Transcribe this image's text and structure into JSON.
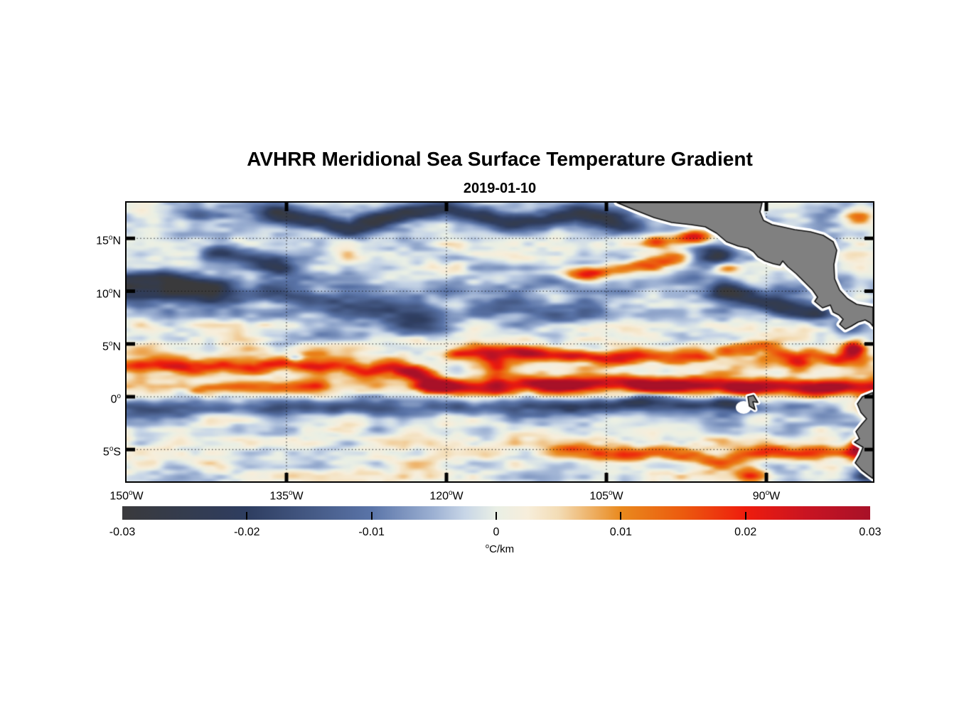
{
  "title": "AVHRR Meridional Sea Surface Temperature Gradient",
  "date": "2019-01-10",
  "axes": {
    "sup_char": "o",
    "x_ticks": [
      {
        "lon": -150,
        "t": "150",
        "d": "W"
      },
      {
        "lon": -135,
        "t": "135",
        "d": "W"
      },
      {
        "lon": -120,
        "t": "120",
        "d": "W"
      },
      {
        "lon": -105,
        "t": "105",
        "d": "W"
      },
      {
        "lon": -90,
        "t": "90",
        "d": "W"
      }
    ],
    "y_ticks": [
      {
        "lat": 15,
        "t": "15",
        "d": "N"
      },
      {
        "lat": 10,
        "t": "10",
        "d": "N"
      },
      {
        "lat": 5,
        "t": "5",
        "d": "N"
      },
      {
        "lat": 0,
        "t": "0",
        "d": ""
      },
      {
        "lat": -5,
        "t": "5",
        "d": "S"
      }
    ],
    "lon_range": [
      -150,
      -80
    ],
    "lat_range": [
      -8.0,
      18.4
    ],
    "grid": "dotted"
  },
  "colorbar": {
    "min": -0.03,
    "max": 0.03,
    "tick_values": [
      -0.03,
      -0.02,
      -0.01,
      0,
      0.01,
      0.02,
      0.03
    ],
    "tick_labels": [
      "-0.03",
      "-0.02",
      "-0.01",
      "0",
      "0.01",
      "0.02",
      "0.03"
    ],
    "unit_sup": "o",
    "unit_text": "C/km",
    "stops": [
      [
        -0.03,
        "#3a3a3c"
      ],
      [
        -0.02,
        "#2e3d60"
      ],
      [
        -0.01,
        "#5a74a8"
      ],
      [
        -0.005,
        "#9db1d3"
      ],
      [
        -0.0025,
        "#c8d6e7"
      ],
      [
        0.0,
        "#e9efe5"
      ],
      [
        0.0025,
        "#f7eedb"
      ],
      [
        0.005,
        "#f3dcb5"
      ],
      [
        0.01,
        "#e9891d"
      ],
      [
        0.015,
        "#ec5a0e"
      ],
      [
        0.02,
        "#ee1c0d"
      ],
      [
        0.025,
        "#c81422"
      ],
      [
        0.03,
        "#a81128"
      ]
    ]
  },
  "chart_data": {
    "type": "heatmap",
    "quantity": "meridional SST gradient",
    "units": "degC/km",
    "lon_range": [
      -150,
      -80
    ],
    "lat_range": [
      -8.0,
      18.4
    ],
    "value_range": [
      -0.03,
      0.03
    ],
    "lat_mean_profile": [
      [
        18.4,
        -0.002
      ],
      [
        17.0,
        -0.004
      ],
      [
        15.5,
        -0.002
      ],
      [
        13.5,
        -0.0005
      ],
      [
        12.0,
        -0.002
      ],
      [
        10.5,
        -0.005
      ],
      [
        9.0,
        -0.004
      ],
      [
        7.0,
        -0.002
      ],
      [
        5.5,
        0.001
      ],
      [
        4.0,
        0.004
      ],
      [
        2.5,
        0.003
      ],
      [
        1.0,
        0.004
      ],
      [
        0.0,
        0.001
      ],
      [
        -1.0,
        -0.003
      ],
      [
        -2.5,
        -0.002
      ],
      [
        -4.0,
        0.001
      ],
      [
        -5.5,
        0.002
      ],
      [
        -7.0,
        0.0005
      ],
      [
        -8.0,
        -0.001
      ]
    ],
    "noise": {
      "seed": 7,
      "octaves": [
        {
          "sx": 3.2,
          "sy": 1.1,
          "amp": 0.0055
        },
        {
          "sx": 1.3,
          "sy": 0.45,
          "amp": 0.0028
        }
      ]
    },
    "bands": [
      {
        "pts": [
          [
            -136,
            17.4
          ],
          [
            -132,
            16.6
          ],
          [
            -129,
            16.0
          ],
          [
            -126,
            16.9
          ],
          [
            -123,
            17.5
          ],
          [
            -120,
            17.8
          ],
          [
            -117,
            17.2
          ],
          [
            -114,
            16.4
          ],
          [
            -111,
            16.6
          ],
          [
            -108,
            17.3
          ],
          [
            -105,
            16.8
          ],
          [
            -103.5,
            16.1
          ]
        ],
        "v": -0.022,
        "w": 0.8
      },
      {
        "pts": [
          [
            -150.5,
            10.9
          ],
          [
            -147,
            11.2
          ],
          [
            -144.5,
            10.7
          ],
          [
            -142,
            10.3
          ]
        ],
        "v": -0.026,
        "w": 0.9
      },
      {
        "pts": [
          [
            -141,
            13.8
          ],
          [
            -138,
            13.0
          ],
          [
            -135.5,
            12.2
          ]
        ],
        "v": -0.018,
        "w": 0.8
      },
      {
        "pts": [
          [
            -150.5,
            9.3
          ],
          [
            -146,
            9.6
          ],
          [
            -141,
            9.2
          ],
          [
            -137,
            9.8
          ],
          [
            -133,
            9.2
          ],
          [
            -130,
            8.7
          ],
          [
            -128,
            8.4
          ],
          [
            -125,
            8.0
          ],
          [
            -122,
            7.7
          ]
        ],
        "v": -0.013,
        "w": 0.9
      },
      {
        "pts": [
          [
            -116,
            8.5
          ],
          [
            -112,
            8.0
          ],
          [
            -108,
            7.6
          ],
          [
            -104.5,
            7.8
          ]
        ],
        "v": -0.009,
        "w": 1.0
      },
      {
        "pts": [
          [
            -143,
            0.8
          ],
          [
            -139.5,
            1.0
          ],
          [
            -136,
            0.8
          ],
          [
            -132.5,
            1.0
          ]
        ],
        "v": 0.011,
        "w": 0.55
      },
      {
        "pts": [
          [
            -121.5,
            0.9
          ],
          [
            -118.5,
            0.8
          ],
          [
            -115.5,
            0.7
          ],
          [
            -112.5,
            1.3
          ],
          [
            -109.5,
            1.0
          ],
          [
            -106.5,
            1.2
          ],
          [
            -103.5,
            1.5
          ],
          [
            -100.5,
            0.9
          ],
          [
            -97.5,
            1.1
          ],
          [
            -94.5,
            1.2
          ],
          [
            -91.5,
            0.8
          ],
          [
            -88.5,
            1.0
          ],
          [
            -85.5,
            0.7
          ],
          [
            -82.5,
            1.0
          ],
          [
            -79.5,
            0.9
          ]
        ],
        "v": 0.023,
        "w": 0.7
      },
      {
        "pts": [
          [
            -150.5,
            2.9
          ],
          [
            -147,
            3.1
          ],
          [
            -144,
            2.7
          ],
          [
            -141,
            3.0
          ],
          [
            -138,
            2.6
          ],
          [
            -135,
            3.2
          ],
          [
            -132,
            2.8
          ],
          [
            -129.5,
            3.1
          ],
          [
            -127.5,
            2.3
          ],
          [
            -125,
            2.9
          ],
          [
            -122.5,
            1.9
          ],
          [
            -120.8,
            1.2
          ]
        ],
        "v": 0.016,
        "w": 0.6
      },
      {
        "pts": [
          [
            -119,
            4.0
          ],
          [
            -116.5,
            4.4
          ],
          [
            -113.5,
            4.3
          ],
          [
            -110.5,
            3.8
          ],
          [
            -107.5,
            3.9
          ],
          [
            -105,
            3.5
          ],
          [
            -102,
            4.0
          ],
          [
            -99,
            3.6
          ],
          [
            -96.5,
            3.8
          ]
        ],
        "v": 0.017,
        "w": 0.6
      },
      {
        "pts": [
          [
            -115.6,
            3.6
          ],
          [
            -115.2,
            2.2
          ],
          [
            -115.6,
            1.2
          ]
        ],
        "v": 0.014,
        "w": 0.5
      },
      {
        "pts": [
          [
            -93.5,
            4.4
          ],
          [
            -90.3,
            4.8
          ],
          [
            -87.2,
            3.7
          ],
          [
            -85.7,
            4.1
          ],
          [
            -83.4,
            3.5
          ],
          [
            -81.8,
            4.4
          ]
        ],
        "v": 0.014,
        "w": 0.55
      },
      {
        "pts": [
          [
            -150.5,
            -1.0
          ],
          [
            -146,
            -1.3
          ],
          [
            -142,
            -0.9
          ],
          [
            -138,
            -1.2
          ],
          [
            -134,
            -0.9
          ],
          [
            -131,
            -1.1
          ],
          [
            -128,
            -0.8
          ],
          [
            -124,
            -1.2
          ],
          [
            -120,
            -0.9
          ],
          [
            -116,
            -1.2
          ],
          [
            -112,
            -0.8
          ],
          [
            -108,
            -1.0
          ],
          [
            -105,
            -0.6
          ],
          [
            -101.5,
            -0.5
          ],
          [
            -98.5,
            -0.6
          ],
          [
            -95.5,
            -0.8
          ],
          [
            -92.5,
            -1.0
          ]
        ],
        "v": -0.011,
        "w": 0.8
      },
      {
        "pts": [
          [
            -108,
            -5.0
          ],
          [
            -106,
            -5.3
          ],
          [
            -103,
            -5.6
          ],
          [
            -100,
            -5.2
          ],
          [
            -97,
            -5.8
          ],
          [
            -94.5,
            -6.1
          ],
          [
            -92,
            -5.5
          ],
          [
            -89.5,
            -5.1
          ],
          [
            -87,
            -5.5
          ],
          [
            -84.5,
            -5.2
          ],
          [
            -82,
            -5.4
          ]
        ],
        "v": 0.012,
        "w": 0.7
      },
      {
        "pts": [
          [
            -108,
            11.6
          ],
          [
            -104,
            12.1
          ],
          [
            -101,
            12.6
          ],
          [
            -98.5,
            13.1
          ]
        ],
        "v": 0.015,
        "w": 0.6
      },
      {
        "pts": [
          [
            -93.5,
            9.9
          ],
          [
            -91.5,
            9.3
          ],
          [
            -89.5,
            8.7
          ],
          [
            -87.5,
            8.2
          ],
          [
            -85.8,
            8.0
          ]
        ],
        "v": -0.022,
        "w": 0.8
      },
      {
        "pts": [
          [
            -131,
            6.6
          ],
          [
            -126,
            6.9
          ],
          [
            -121,
            6.4
          ]
        ],
        "v": -0.006,
        "w": 0.9
      }
    ],
    "blobs": [
      {
        "c": [
          -96.8,
          15.1
        ],
        "sx": 1.6,
        "sy": 0.7,
        "v": 0.03
      },
      {
        "c": [
          -100.0,
          14.7
        ],
        "sx": 1.6,
        "sy": 0.6,
        "v": 0.016
      },
      {
        "c": [
          -94.8,
          13.4
        ],
        "sx": 1.8,
        "sy": 0.9,
        "v": -0.026
      },
      {
        "c": [
          -93.8,
          12.2
        ],
        "sx": 1.2,
        "sy": 0.6,
        "v": 0.017
      },
      {
        "c": [
          -106.5,
          11.4
        ],
        "sx": 1.4,
        "sy": 0.6,
        "v": 0.013
      },
      {
        "c": [
          -90.8,
          14.6
        ],
        "sx": 1.0,
        "sy": 0.6,
        "v": 0.022
      },
      {
        "c": [
          -89.9,
          13.5
        ],
        "sx": 0.9,
        "sy": 0.5,
        "v": 0.018
      },
      {
        "c": [
          -112.8,
          4.3
        ],
        "sx": 2.0,
        "sy": 0.55,
        "v": 0.012
      },
      {
        "c": [
          -108.0,
          3.8
        ],
        "sx": 2.0,
        "sy": 0.5,
        "v": 0.01
      },
      {
        "c": [
          -109.0,
          1.1
        ],
        "sx": 2.5,
        "sy": 0.6,
        "v": 0.012
      },
      {
        "c": [
          -100.5,
          1.1
        ],
        "sx": 2.5,
        "sy": 0.6,
        "v": 0.012
      },
      {
        "c": [
          -92.5,
          0.7
        ],
        "sx": 1.5,
        "sy": 0.5,
        "v": 0.012
      },
      {
        "c": [
          -84.5,
          0.8
        ],
        "sx": 2.2,
        "sy": 0.6,
        "v": 0.01
      },
      {
        "c": [
          -102.0,
          -0.5
        ],
        "sx": 2.0,
        "sy": 0.6,
        "v": -0.01
      },
      {
        "c": [
          -107.0,
          -1.0
        ],
        "sx": 2.0,
        "sy": 0.6,
        "v": -0.008
      },
      {
        "c": [
          -93.6,
          -0.6
        ],
        "sx": 1.8,
        "sy": 0.55,
        "v": -0.018
      },
      {
        "c": [
          -81.3,
          -4.7
        ],
        "sx": 1.0,
        "sy": 0.8,
        "v": 0.026
      },
      {
        "c": [
          -91.5,
          -7.4
        ],
        "sx": 1.2,
        "sy": 0.7,
        "v": 0.018
      },
      {
        "c": [
          -80.3,
          -1.3
        ],
        "sx": 1.0,
        "sy": 1.0,
        "v": 0.022
      },
      {
        "c": [
          -80.4,
          -7.3
        ],
        "sx": 1.2,
        "sy": 0.9,
        "v": -0.022
      },
      {
        "c": [
          -83.5,
          -5.8
        ],
        "sx": 1.3,
        "sy": 0.7,
        "v": -0.01
      },
      {
        "c": [
          -82.5,
          6.6
        ],
        "sx": 1.5,
        "sy": 0.8,
        "v": -0.014
      },
      {
        "c": [
          -81.8,
          4.6
        ],
        "sx": 1.0,
        "sy": 0.8,
        "v": 0.024
      },
      {
        "c": [
          -81.3,
          17.0
        ],
        "sx": 1.5,
        "sy": 0.8,
        "v": 0.012
      },
      {
        "c": [
          -123.0,
          6.2
        ],
        "sx": 2.0,
        "sy": 0.8,
        "v": -0.007
      },
      {
        "c": [
          -134.2,
          3.6
        ],
        "sx": 0.8,
        "sy": 0.5,
        "v": -0.014
      },
      {
        "c": [
          -123.5,
          2.4
        ],
        "sx": 2.2,
        "sy": 0.55,
        "v": 0.01
      },
      {
        "c": [
          -143.0,
          17.1
        ],
        "sx": 1.8,
        "sy": 0.6,
        "v": -0.012
      },
      {
        "c": [
          -87.0,
          2.8
        ],
        "sx": 1.2,
        "sy": 0.6,
        "v": 0.013
      }
    ],
    "land": {
      "fill": "#808080",
      "outline": "#111111",
      "halo": "#ffffff",
      "central_america": [
        [
          690,
          0
        ],
        [
          894,
          0
        ],
        [
          891,
          13
        ],
        [
          896,
          25
        ],
        [
          908,
          31
        ],
        [
          922,
          34
        ],
        [
          940,
          38
        ],
        [
          962,
          41
        ],
        [
          980,
          46
        ],
        [
          994,
          55
        ],
        [
          999,
          67
        ],
        [
          995,
          87
        ],
        [
          996,
          107
        ],
        [
          1003,
          123
        ],
        [
          1014,
          135
        ],
        [
          1027,
          143
        ],
        [
          1050,
          147
        ],
        [
          1050,
          174
        ],
        [
          1046,
          169
        ],
        [
          1039,
          165
        ],
        [
          1029,
          168
        ],
        [
          1019,
          174
        ],
        [
          1011,
          178
        ],
        [
          1003,
          171
        ],
        [
          1008,
          164
        ],
        [
          1002,
          158
        ],
        [
          994,
          154
        ],
        [
          990,
          144
        ],
        [
          979,
          148
        ],
        [
          968,
          139
        ],
        [
          972,
          133
        ],
        [
          965,
          123
        ],
        [
          955,
          113
        ],
        [
          942,
          100
        ],
        [
          930,
          90
        ],
        [
          923,
          82
        ],
        [
          919,
          88
        ],
        [
          910,
          86
        ],
        [
          898,
          82
        ],
        [
          888,
          76
        ],
        [
          882,
          69
        ],
        [
          874,
          64
        ],
        [
          860,
          61
        ],
        [
          844,
          55
        ],
        [
          830,
          43
        ],
        [
          814,
          34
        ],
        [
          794,
          31
        ],
        [
          767,
          28
        ],
        [
          742,
          21
        ],
        [
          714,
          10
        ]
      ],
      "south_america": [
        [
          1050,
          267
        ],
        [
          1035,
          273
        ],
        [
          1028,
          283
        ],
        [
          1033,
          295
        ],
        [
          1041,
          304
        ],
        [
          1034,
          312
        ],
        [
          1026,
          322
        ],
        [
          1031,
          332
        ],
        [
          1024,
          337
        ],
        [
          1036,
          344
        ],
        [
          1031,
          356
        ],
        [
          1025,
          366
        ],
        [
          1034,
          376
        ],
        [
          1043,
          383
        ],
        [
          1050,
          388
        ]
      ],
      "galapagos": [
        [
          874,
          273
        ],
        [
          882,
          271
        ],
        [
          888,
          281
        ],
        [
          881,
          280
        ],
        [
          884,
          291
        ],
        [
          876,
          286
        ]
      ]
    }
  }
}
